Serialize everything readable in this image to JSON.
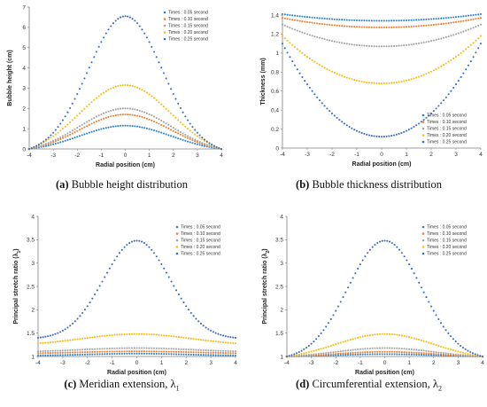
{
  "colors": {
    "t005": "#2e83c7",
    "t010": "#ee7d2f",
    "t015": "#a3a3a3",
    "t020": "#f5bd16",
    "t025": "#3a6cbf"
  },
  "chart_data": [
    {
      "id": "a",
      "type": "scatter",
      "caption": {
        "letter": "(a)",
        "text": "Bubble height distribution",
        "sub": ""
      },
      "xlabel": "Radial position (cm)",
      "ylabel": "Bubble height (cm)",
      "xlim": [
        -4,
        4
      ],
      "ylim": [
        0,
        7
      ],
      "xticks": [
        "-4",
        "-3",
        "-2",
        "-1",
        "0",
        "1",
        "2",
        "3",
        "4"
      ],
      "yticks": [
        "0",
        "1",
        "2",
        "3",
        "4",
        "5",
        "6",
        "7"
      ],
      "grid": false,
      "legend_placement": "top-right",
      "series": [
        {
          "name": "Times : 0.05 second",
          "color_key": "t005",
          "profile": "gauss",
          "edge": 0,
          "center": 1.15,
          "sigma": 1.9
        },
        {
          "name": "Times : 0.10 second",
          "color_key": "t010",
          "profile": "gauss",
          "edge": 0,
          "center": 1.7,
          "sigma": 1.9
        },
        {
          "name": "Times : 0.15 second",
          "color_key": "t015",
          "profile": "gauss",
          "edge": 0,
          "center": 2.0,
          "sigma": 1.9
        },
        {
          "name": "Times : 0.20 second",
          "color_key": "t020",
          "profile": "gauss",
          "edge": 0,
          "center": 3.15,
          "sigma": 1.9
        },
        {
          "name": "Times : 0.25 second",
          "color_key": "t025",
          "profile": "gauss",
          "edge": 0,
          "center": 6.55,
          "sigma": 1.55
        }
      ]
    },
    {
      "id": "b",
      "type": "scatter",
      "caption": {
        "letter": "(b)",
        "text": "Bubble thickness distribution",
        "sub": ""
      },
      "xlabel": "Radial position (cm)",
      "ylabel": "Thickness (mm)",
      "xlim": [
        -4,
        4
      ],
      "ylim": [
        0,
        1.4
      ],
      "xticks": [
        "-4",
        "-3",
        "-2",
        "-1",
        "0",
        "1",
        "2",
        "3",
        "4"
      ],
      "yticks": [
        "0",
        "0.2",
        "0.4",
        "0.6",
        "0.8",
        "1",
        "1.2",
        "1.4"
      ],
      "grid": false,
      "legend_placement": "bottom-right",
      "series": [
        {
          "name": "Times : 0.05 second",
          "color_key": "t005",
          "profile": "parab",
          "edge": 1.41,
          "center": 1.34
        },
        {
          "name": "Times : 0.10 second",
          "color_key": "t010",
          "profile": "parab",
          "edge": 1.37,
          "center": 1.27
        },
        {
          "name": "Times : 0.15 second",
          "color_key": "t015",
          "profile": "parab",
          "edge": 1.3,
          "center": 1.07
        },
        {
          "name": "Times : 0.20 second",
          "color_key": "t020",
          "profile": "parab",
          "edge": 1.18,
          "center": 0.68
        },
        {
          "name": "Times : 0.25 second",
          "color_key": "t025",
          "profile": "parab",
          "edge": 1.1,
          "center": 0.12
        }
      ]
    },
    {
      "id": "c",
      "type": "scatter",
      "caption": {
        "letter": "(c)",
        "text": "Meridian extension, λ",
        "sub": "1"
      },
      "xlabel": "Radial position (cm)",
      "ylabel": "Principal stretch ratio (λ",
      "ylabel_sub": "1",
      "ylabel_end": ")",
      "xlim": [
        -4,
        4
      ],
      "ylim": [
        1,
        4
      ],
      "xticks": [
        "-4",
        "-3",
        "-2",
        "-1",
        "0",
        "1",
        "2",
        "3",
        "4"
      ],
      "yticks": [
        "1",
        "1.5",
        "2",
        "2.5",
        "3",
        "3.5",
        "4"
      ],
      "grid": false,
      "legend_placement": "top-right",
      "series": [
        {
          "name": "Times : 0.05 second",
          "color_key": "t005",
          "profile": "gauss",
          "edge": 1.02,
          "center": 1.06,
          "sigma": 2.2
        },
        {
          "name": "Times : 0.10 second",
          "color_key": "t010",
          "profile": "gauss",
          "edge": 1.07,
          "center": 1.11,
          "sigma": 2.2
        },
        {
          "name": "Times : 0.15 second",
          "color_key": "t015",
          "profile": "gauss",
          "edge": 1.11,
          "center": 1.18,
          "sigma": 2.2
        },
        {
          "name": "Times : 0.20 second",
          "color_key": "t020",
          "profile": "gauss",
          "edge": 1.28,
          "center": 1.48,
          "sigma": 2.2
        },
        {
          "name": "Times : 0.25 second",
          "color_key": "t025",
          "profile": "gauss",
          "edge": 1.4,
          "center": 3.48,
          "sigma": 1.35
        }
      ]
    },
    {
      "id": "d",
      "type": "scatter",
      "caption": {
        "letter": "(d)",
        "text": "Circumferential extension, λ",
        "sub": "2"
      },
      "xlabel": "Radial position (cm)",
      "ylabel": "Principal stretch ratio (λ",
      "ylabel_sub": "2",
      "ylabel_end": ")",
      "xlim": [
        -4,
        4
      ],
      "ylim": [
        1,
        4
      ],
      "xticks": [
        "-4",
        "-3",
        "-2",
        "-1",
        "0",
        "1",
        "2",
        "3",
        "4"
      ],
      "yticks": [
        "1",
        "1.5",
        "2",
        "2.5",
        "3",
        "3.5",
        "4"
      ],
      "grid": false,
      "legend_placement": "top-right",
      "series": [
        {
          "name": "Times : 0.05 second",
          "color_key": "t005",
          "profile": "gauss",
          "edge": 1.0,
          "center": 1.05,
          "sigma": 2.0
        },
        {
          "name": "Times : 0.10 second",
          "color_key": "t010",
          "profile": "gauss",
          "edge": 1.0,
          "center": 1.1,
          "sigma": 2.0
        },
        {
          "name": "Times : 0.15 second",
          "color_key": "t015",
          "profile": "gauss",
          "edge": 1.0,
          "center": 1.18,
          "sigma": 2.0
        },
        {
          "name": "Times : 0.20 second",
          "color_key": "t020",
          "profile": "gauss",
          "edge": 1.0,
          "center": 1.48,
          "sigma": 2.0
        },
        {
          "name": "Times : 0.25 second",
          "color_key": "t025",
          "profile": "gauss",
          "edge": 1.0,
          "center": 3.48,
          "sigma": 1.5
        }
      ]
    }
  ]
}
